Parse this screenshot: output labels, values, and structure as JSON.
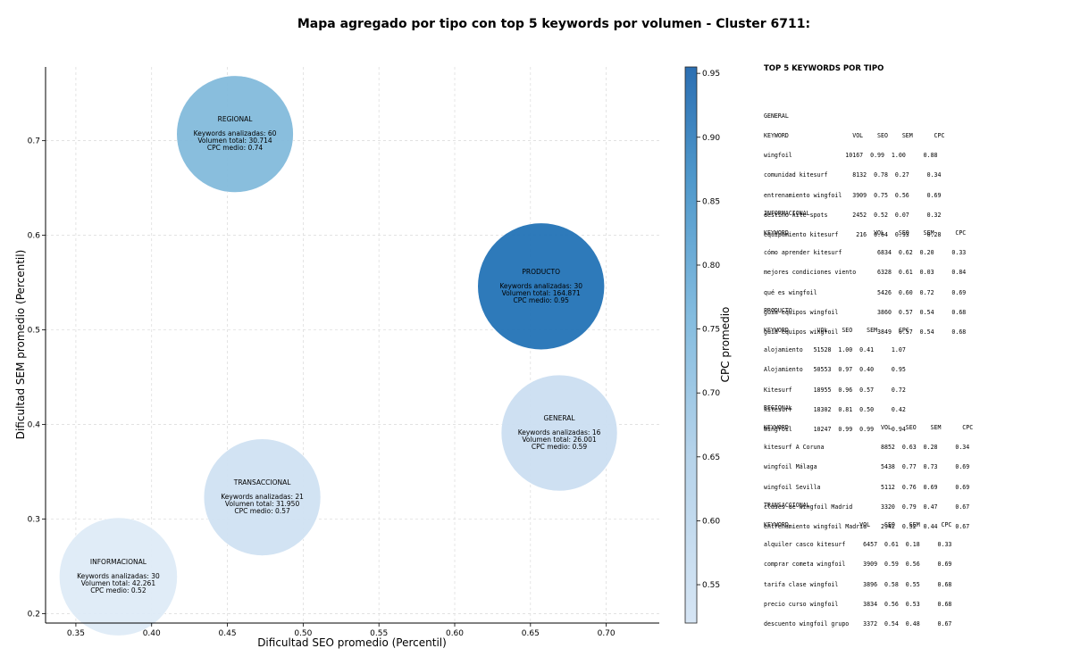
{
  "chart_data": {
    "type": "scatter",
    "title": "Mapa agregado por tipo con top 5 keywords por volumen - Cluster 6711:",
    "xlabel": "Dificultad SEO promedio (Percentil)",
    "ylabel": "Dificultad SEM promedio (Percentil)",
    "colorbar_label": "CPC promedio",
    "xlim": [
      0.33,
      0.735
    ],
    "ylim": [
      0.19,
      0.778
    ],
    "xticks": [
      0.35,
      0.4,
      0.45,
      0.5,
      0.55,
      0.6,
      0.65,
      0.7
    ],
    "yticks": [
      0.2,
      0.3,
      0.4,
      0.5,
      0.6,
      0.7
    ],
    "color_range": [
      0.52,
      0.955
    ],
    "color_ticks": [
      0.55,
      0.6,
      0.65,
      0.7,
      0.75,
      0.8,
      0.85,
      0.9,
      0.95
    ],
    "grid": true,
    "colormap": [
      "#deebf7",
      "#c6dbef",
      "#9ecae1",
      "#6baed6",
      "#4292c6",
      "#2171b5"
    ],
    "points": [
      {
        "label": "REGIONAL",
        "x": 0.455,
        "y": 0.707,
        "keywords_label": "Keywords analizadas: 60",
        "volume_label": "Volumen total: 30.714",
        "cpc_label": "CPC medio: 0.74",
        "cpc": 0.74,
        "volume": 30714
      },
      {
        "label": "PRODUCTO",
        "x": 0.657,
        "y": 0.546,
        "keywords_label": "Keywords analizadas: 30",
        "volume_label": "Volumen total: 164.871",
        "cpc_label": "CPC medio: 0.95",
        "cpc": 0.95,
        "volume": 164871
      },
      {
        "label": "GENERAL",
        "x": 0.669,
        "y": 0.391,
        "keywords_label": "Keywords analizadas: 16",
        "volume_label": "Volumen total: 26.001",
        "cpc_label": "CPC medio: 0.59",
        "cpc": 0.59,
        "volume": 26001
      },
      {
        "label": "TRANSACCIONAL",
        "x": 0.473,
        "y": 0.323,
        "keywords_label": "Keywords analizadas: 21",
        "volume_label": "Volumen total: 31.950",
        "cpc_label": "CPC medio: 0.57",
        "cpc": 0.57,
        "volume": 31950
      },
      {
        "label": "INFORMACIONAL",
        "x": 0.378,
        "y": 0.239,
        "keywords_label": "Keywords analizadas: 30",
        "volume_label": "Volumen total: 42.261",
        "cpc_label": "CPC medio: 0.52",
        "cpc": 0.52,
        "volume": 42261
      }
    ]
  },
  "panel": {
    "heading": "TOP 5 KEYWORDS POR TIPO",
    "blocks": [
      {
        "type": "GENERAL",
        "header": "KEYWORD                  VOL    SEO    SEM      CPC",
        "rows": [
          "wingfoil               10167  0.99  1.00     0.88",
          "comunidad kitesurf       8132  0.78  0.27     0.34",
          "entrenamiento wingfoil   3909  0.75  0.56     0.69",
          "destino kite spots       2452  0.52  0.07     0.32",
          "equipamiento kitesurf     216  0.64  0.93     0.28"
        ]
      },
      {
        "type": "INFORMACIONAL",
        "header": "KEYWORD                        VOL    SEO    SEM      CPC",
        "rows": [
          "cómo aprender kitesurf          6834  0.62  0.20     0.33",
          "mejores condiciones viento      6328  0.61  0.03     0.84",
          "qué es wingfoil                 5426  0.60  0.72     0.69",
          "guía equipos wingfoil           3860  0.57  0.54     0.68",
          "guia equipos wingfoil           3849  0.57  0.54     0.68"
        ]
      },
      {
        "type": "PRODUCTO",
        "header": "KEYWORD        VOL    SEO    SEM      CPC",
        "rows": [
          "alojamiento   51528  1.00  0.41     1.07",
          "Alojamiento   50553  0.97  0.40     0.95",
          "Kitesurf      18955  0.96  0.57     0.72",
          "kitesurf      18302  0.81  0.50     0.42",
          "Wingfoil      10247  0.99  0.99     0.94"
        ]
      },
      {
        "type": "REGIONAL",
        "header": "KEYWORD                          VOL    SEO    SEM      CPC",
        "rows": [
          "kitesurf A Coruna                8852  0.63  0.28     0.34",
          "wingfoil Málaga                  5438  0.77  0.73     0.69",
          "wingfoil Sevilla                 5112  0.76  0.69     0.69",
          "clases de wingfoil Madrid        3320  0.79  0.47     0.67",
          "entrenamiento wingfoil Madrid    2942  0.52  0.44     0.67"
        ]
      },
      {
        "type": "TRANSACCIONAL",
        "header": "KEYWORD                    VOL    SEO    SEM      CPC",
        "rows": [
          "alquiler casco kitesurf     6457  0.61  0.18     0.33",
          "comprar cometa wingfoil     3909  0.59  0.56     0.69",
          "tarifa clase wingfoil       3896  0.58  0.55     0.68",
          "precio curso wingfoil       3834  0.56  0.53     0.68",
          "descuento wingfoil grupo    3372  0.54  0.48     0.67"
        ]
      }
    ]
  }
}
